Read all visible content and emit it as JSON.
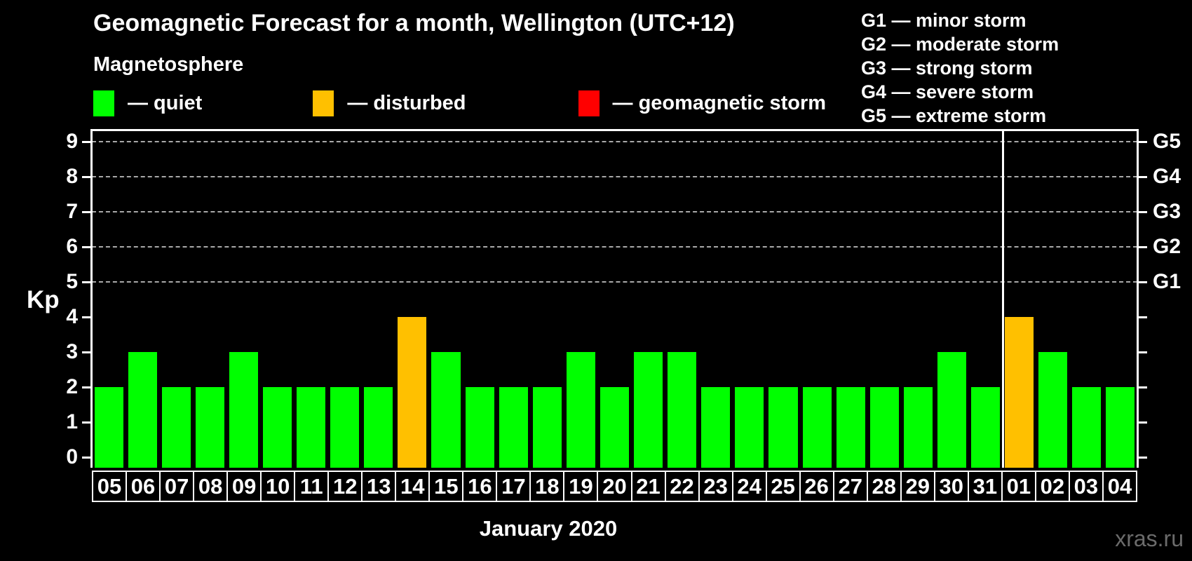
{
  "header": {
    "title": "Geomagnetic Forecast for a month, Wellington (UTC+12)",
    "subtitle": "Magnetosphere"
  },
  "legend": {
    "items": [
      {
        "name": "quiet",
        "label": "— quiet",
        "color": "#00ff00"
      },
      {
        "name": "disturbed",
        "label": "— disturbed",
        "color": "#ffc000"
      },
      {
        "name": "storm",
        "label": "— geomagnetic storm",
        "color": "#ff0000"
      }
    ]
  },
  "storm_scale": [
    {
      "text": "G1 — minor storm"
    },
    {
      "text": "G2 — moderate storm"
    },
    {
      "text": "G3 — strong storm"
    },
    {
      "text": "G4 — severe storm"
    },
    {
      "text": "G5 — extreme storm"
    }
  ],
  "watermark": "xras.ru",
  "chart_data": {
    "type": "bar",
    "title": "Geomagnetic Forecast for a month, Wellington (UTC+12)",
    "xlabel": "January 2020",
    "ylabel": "Kp",
    "ylim": [
      0,
      9.4
    ],
    "yticks": [
      0,
      1,
      2,
      3,
      4,
      5,
      6,
      7,
      8,
      9
    ],
    "gridlines_at_kp": [
      5,
      6,
      7,
      8,
      9
    ],
    "grid": "dashed horizontal at storm levels only",
    "legend_position": "top",
    "right_axis_labels": [
      {
        "kp": 5,
        "label": "G1"
      },
      {
        "kp": 6,
        "label": "G2"
      },
      {
        "kp": 7,
        "label": "G3"
      },
      {
        "kp": 8,
        "label": "G4"
      },
      {
        "kp": 9,
        "label": "G5"
      }
    ],
    "categories": [
      "05",
      "06",
      "07",
      "08",
      "09",
      "10",
      "11",
      "12",
      "13",
      "14",
      "15",
      "16",
      "17",
      "18",
      "19",
      "20",
      "21",
      "22",
      "23",
      "24",
      "25",
      "26",
      "27",
      "28",
      "29",
      "30",
      "31",
      "01",
      "02",
      "03",
      "04"
    ],
    "values": [
      2,
      3,
      2,
      2,
      3,
      2,
      2,
      2,
      2,
      4,
      3,
      2,
      2,
      2,
      3,
      2,
      3,
      3,
      2,
      2,
      2,
      2,
      2,
      2,
      2,
      3,
      2,
      4,
      3,
      2,
      2
    ],
    "statuses": [
      "quiet",
      "quiet",
      "quiet",
      "quiet",
      "quiet",
      "quiet",
      "quiet",
      "quiet",
      "quiet",
      "disturbed",
      "quiet",
      "quiet",
      "quiet",
      "quiet",
      "quiet",
      "quiet",
      "quiet",
      "quiet",
      "quiet",
      "quiet",
      "quiet",
      "quiet",
      "quiet",
      "quiet",
      "quiet",
      "quiet",
      "quiet",
      "disturbed",
      "quiet",
      "quiet",
      "quiet"
    ],
    "colors": {
      "quiet": "#00ff00",
      "disturbed": "#ffc000",
      "storm": "#ff0000"
    },
    "month_separator_after_index": 26
  }
}
